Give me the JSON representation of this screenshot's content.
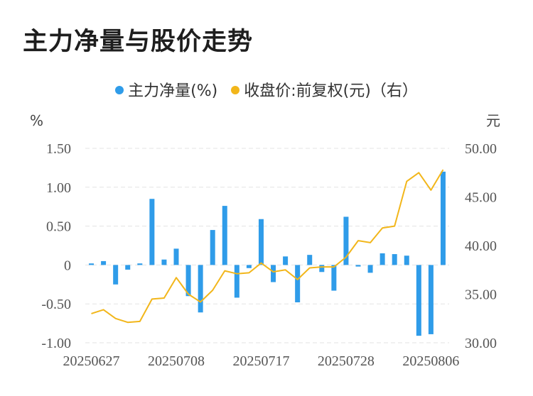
{
  "title": "主力净量与股价走势",
  "legend": {
    "left_label": "主力净量(%)",
    "right_label": "收盘价:前复权(元)（右）"
  },
  "colors": {
    "bar": "#2f9ce9",
    "line": "#f2b61a",
    "grid": "#e3e3e3"
  },
  "chart_data": {
    "type": "bar+line",
    "title": "主力净量与股价走势",
    "left_axis": {
      "unit": "%",
      "ylim": [
        -1.0,
        1.5
      ],
      "ticks": [
        "1.50",
        "1.00",
        "0.50",
        "0",
        "-0.50",
        "-1.00"
      ],
      "tick_values": [
        1.5,
        1.0,
        0.5,
        0,
        -0.5,
        -1.0
      ]
    },
    "right_axis": {
      "unit": "元",
      "ylim": [
        30.0,
        50.0
      ],
      "ticks": [
        "50.00",
        "45.00",
        "40.00",
        "35.00",
        "30.00"
      ],
      "tick_values": [
        50,
        45,
        40,
        35,
        30
      ]
    },
    "x_tick_labels": [
      "20250627",
      "20250708",
      "20250717",
      "20250728",
      "20250806"
    ],
    "x_tick_indices": [
      0,
      7,
      14,
      21,
      28
    ],
    "series": [
      {
        "name": "主力净量(%)",
        "type": "bar",
        "values": [
          0.02,
          0.05,
          -0.25,
          -0.06,
          0.02,
          0.85,
          0.07,
          0.21,
          -0.4,
          -0.61,
          0.45,
          0.76,
          -0.42,
          -0.04,
          0.59,
          -0.22,
          0.11,
          -0.48,
          0.13,
          -0.09,
          -0.33,
          0.62,
          -0.02,
          -0.1,
          0.15,
          0.14,
          0.12,
          -0.91,
          -0.89,
          1.2
        ]
      },
      {
        "name": "收盘价:前复权(元)（右）",
        "type": "line",
        "values": [
          33.0,
          33.4,
          32.5,
          32.1,
          32.2,
          34.5,
          34.6,
          36.7,
          35.0,
          34.2,
          35.4,
          37.4,
          37.1,
          37.2,
          38.2,
          37.3,
          37.5,
          36.5,
          37.7,
          37.8,
          37.8,
          38.8,
          40.5,
          40.3,
          41.8,
          42.0,
          46.6,
          47.5,
          45.7,
          47.8
        ]
      }
    ]
  }
}
